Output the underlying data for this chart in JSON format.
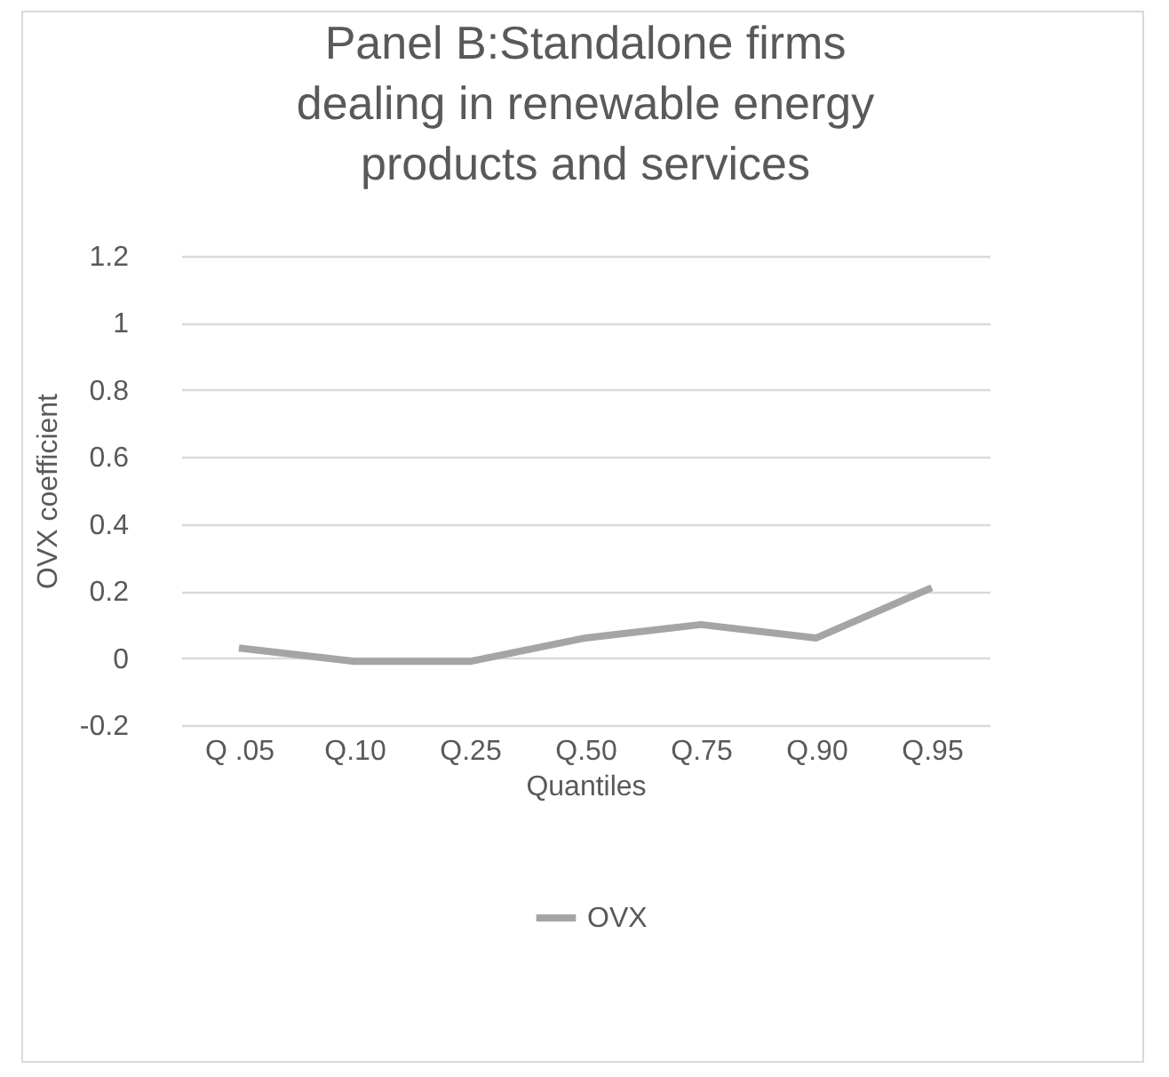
{
  "chart_data": {
    "type": "line",
    "title": "Panel B:Standalone firms dealing in renewable energy products and services",
    "xlabel": "Quantiles",
    "ylabel": "OVX coefficient",
    "categories": [
      "Q .05",
      "Q.10",
      "Q.25",
      "Q.50",
      "Q.75",
      "Q.90",
      "Q.95"
    ],
    "series": [
      {
        "name": "OVX",
        "color": "#a5a5a5",
        "values": [
          0.03,
          -0.01,
          -0.01,
          0.06,
          0.1,
          0.06,
          0.21
        ]
      }
    ],
    "ylim": [
      -0.2,
      1.2
    ],
    "yticks": [
      -0.2,
      0,
      0.2,
      0.4,
      0.6,
      0.8,
      1,
      1.2
    ],
    "grid": "y",
    "legend": "bottom",
    "marker": "none",
    "line_style": "solid"
  }
}
